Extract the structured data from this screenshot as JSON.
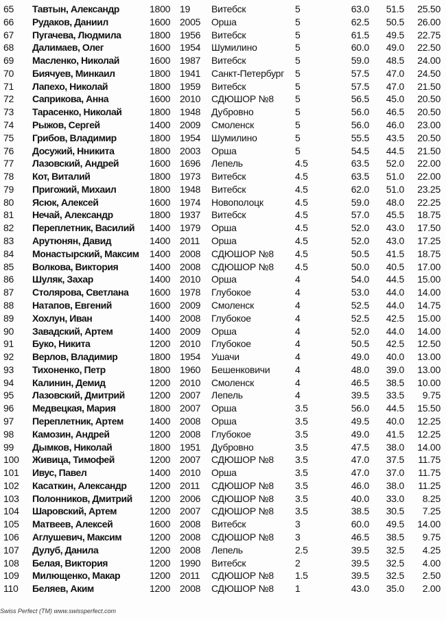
{
  "rows": [
    [
      "65",
      "Тавтын, Александр",
      "1800",
      "19",
      "Витебск",
      "5",
      "63.0",
      "51.5",
      "25.50"
    ],
    [
      "66",
      "Рудаков, Даниил",
      "1600",
      "2005",
      "Орша",
      "5",
      "62.5",
      "50.5",
      "26.00"
    ],
    [
      "67",
      "Пугачева, Людмила",
      "1800",
      "1956",
      "Витебск",
      "5",
      "61.5",
      "49.5",
      "22.75"
    ],
    [
      "68",
      "Далимаев, Олег",
      "1600",
      "1954",
      "Шумилино",
      "5",
      "60.0",
      "49.0",
      "22.50"
    ],
    [
      "69",
      "Масленко, Николай",
      "1600",
      "1987",
      "Витебск",
      "5",
      "59.0",
      "48.5",
      "24.00"
    ],
    [
      "70",
      "Биячуев, Минкаил",
      "1800",
      "1941",
      "Санкт-Петербург",
      "5",
      "57.5",
      "47.0",
      "24.50"
    ],
    [
      "71",
      "Лапехо, Николай",
      "1800",
      "1959",
      "Витебск",
      "5",
      "57.5",
      "47.0",
      "21.50"
    ],
    [
      "72",
      "Саприкова, Анна",
      "1600",
      "2010",
      "СДЮШОР №8",
      "5",
      "56.5",
      "45.0",
      "20.50"
    ],
    [
      "73",
      "Тарасенко, Николай",
      "1800",
      "1948",
      "Дубровно",
      "5",
      "56.0",
      "46.5",
      "20.50"
    ],
    [
      "74",
      "Рыжов, Сергей",
      "1400",
      "2009",
      "Смоленск",
      "5",
      "56.0",
      "46.0",
      "23.00"
    ],
    [
      "75",
      "Грибов, Владимир",
      "1800",
      "1954",
      "Шумилино",
      "5",
      "55.5",
      "43.5",
      "20.50"
    ],
    [
      "76",
      "Досужий, Нникита",
      "1800",
      "2003",
      "Орша",
      "5",
      "54.5",
      "44.5",
      "21.50"
    ],
    [
      "77",
      "Лазовский, Андрей",
      "1600",
      "1696",
      "Лепель",
      "4.5",
      "63.5",
      "52.0",
      "22.00"
    ],
    [
      "78",
      "Кот, Виталий",
      "1800",
      "1973",
      "Витебск",
      "4.5",
      "63.5",
      "51.0",
      "22.00"
    ],
    [
      "79",
      "Пригожий, Михаил",
      "1800",
      "1948",
      "Витебск",
      "4.5",
      "62.0",
      "51.0",
      "23.25"
    ],
    [
      "80",
      "Ясюк, Алексей",
      "1600",
      "1974",
      "Новополоцк",
      "4.5",
      "59.0",
      "48.0",
      "22.25"
    ],
    [
      "81",
      "Нечай, Александр",
      "1800",
      "1937",
      "Витебск",
      "4.5",
      "57.0",
      "45.5",
      "18.75"
    ],
    [
      "82",
      "Переплетник, Василий",
      "1400",
      "1979",
      "Орша",
      "4.5",
      "52.0",
      "43.0",
      "17.50"
    ],
    [
      "83",
      "Арутюнян, Давид",
      "1400",
      "2011",
      "Орша",
      "4.5",
      "52.0",
      "43.0",
      "17.25"
    ],
    [
      "84",
      "Монастырский, Максим",
      "1400",
      "2008",
      "СДЮШОР №8",
      "4.5",
      "50.5",
      "41.5",
      "18.75"
    ],
    [
      "85",
      "Волкова, Виктория",
      "1400",
      "2008",
      "СДЮШОР №8",
      "4.5",
      "50.0",
      "40.5",
      "17.00"
    ],
    [
      "86",
      "Шуляк, Захар",
      "1400",
      "2010",
      "Орша",
      "4",
      "54.0",
      "44.5",
      "15.00"
    ],
    [
      "87",
      "Столярова, Светлана",
      "1600",
      "1978",
      "Глубокое",
      "4",
      "53.0",
      "44.0",
      "14.00"
    ],
    [
      "88",
      "Натапов, Евгений",
      "1600",
      "2009",
      "Смоленск",
      "4",
      "52.5",
      "44.0",
      "14.75"
    ],
    [
      "89",
      "Хохлун, Иван",
      "1400",
      "2008",
      "Глубокое",
      "4",
      "52.5",
      "42.5",
      "15.00"
    ],
    [
      "90",
      "Завадский, Артем",
      "1400",
      "2009",
      "Орша",
      "4",
      "52.0",
      "44.0",
      "14.00"
    ],
    [
      "91",
      "Буко, Никита",
      "1200",
      "2010",
      "Глубокое",
      "4",
      "50.5",
      "42.5",
      "12.50"
    ],
    [
      "92",
      "Верлов, Владимир",
      "1800",
      "1954",
      "Ушачи",
      "4",
      "49.0",
      "40.0",
      "13.00"
    ],
    [
      "93",
      "Тихоненко, Петр",
      "1800",
      "1960",
      "Бешенковичи",
      "4",
      "48.0",
      "39.0",
      "13.00"
    ],
    [
      "94",
      "Калинин, Демид",
      "1200",
      "2010",
      "Смоленск",
      "4",
      "46.5",
      "38.5",
      "10.00"
    ],
    [
      "95",
      "Лазовский, Дмитрий",
      "1200",
      "2007",
      "Лепель",
      "4",
      "39.5",
      "33.5",
      "9.75"
    ],
    [
      "96",
      "Медвецкая, Мария",
      "1800",
      "2007",
      "Орша",
      "3.5",
      "56.0",
      "44.5",
      "15.50"
    ],
    [
      "97",
      "Переплетник, Артем",
      "1400",
      "2008",
      "Орша",
      "3.5",
      "49.5",
      "40.0",
      "12.25"
    ],
    [
      "98",
      "Камозин, Андрей",
      "1200",
      "2008",
      "Глубокое",
      "3.5",
      "49.0",
      "41.5",
      "12.25"
    ],
    [
      "99",
      "Дымков, Николай",
      "1800",
      "1951",
      "Дубровно",
      "3.5",
      "47.5",
      "38.0",
      "14.00"
    ],
    [
      "100",
      "Живица, Тимофей",
      "1200",
      "2007",
      "СДЮШОР №8",
      "3.5",
      "47.0",
      "37.5",
      "11.75"
    ],
    [
      "101",
      "Ивус, Павел",
      "1400",
      "2010",
      "Орша",
      "3.5",
      "47.0",
      "37.0",
      "11.75"
    ],
    [
      "102",
      "Касаткин, Александр",
      "1200",
      "2011",
      "СДЮШОР №8",
      "3.5",
      "46.0",
      "38.0",
      "11.25"
    ],
    [
      "103",
      "Полонников, Дмитрий",
      "1200",
      "2006",
      "СДЮШОР №8",
      "3.5",
      "40.0",
      "33.0",
      "8.25"
    ],
    [
      "104",
      "Шаровский, Артем",
      "1200",
      "2007",
      "СДЮШОР №8",
      "3.5",
      "38.5",
      "30.5",
      "7.25"
    ],
    [
      "105",
      "Матвеев, Алексей",
      "1600",
      "2008",
      "Витебск",
      "3",
      "60.0",
      "49.5",
      "14.00"
    ],
    [
      "106",
      "Аглушевич, Максим",
      "1200",
      "2008",
      "СДЮШОР №8",
      "3",
      "46.5",
      "38.5",
      "9.75"
    ],
    [
      "107",
      "Дулуб, Данила",
      "1200",
      "2008",
      "Лепель",
      "2.5",
      "39.5",
      "32.5",
      "4.25"
    ],
    [
      "108",
      "Белая, Виктория",
      "1200",
      "1990",
      "Витебск",
      "2",
      "39.5",
      "32.5",
      "4.00"
    ],
    [
      "109",
      "Милющенко, Макар",
      "1200",
      "2011",
      "СДЮШОР №8",
      "1.5",
      "39.5",
      "32.5",
      "2.50"
    ],
    [
      "110",
      "Беляев, Аким",
      "1200",
      "2008",
      "СДЮШОР №8",
      "1",
      "43.0",
      "35.0",
      "2.00"
    ]
  ],
  "footer": "Swiss Perfect (TM)  www.swissperfect.com"
}
